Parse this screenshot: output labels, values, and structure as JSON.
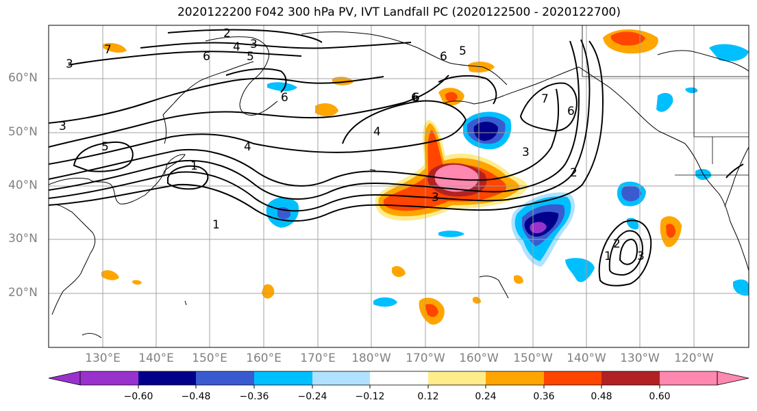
{
  "title": "2020122200 F042 300 hPa PV, IVT Landfall PC (2020122500 - 2020122700)",
  "lat_labels": [
    "60°N",
    "50°N",
    "40°N",
    "30°N",
    "20°N"
  ],
  "lon_labels": [
    "130°E",
    "140°E",
    "150°E",
    "160°E",
    "170°E",
    "180°W",
    "170°W",
    "160°W",
    "150°W",
    "140°W",
    "130°W",
    "120°W"
  ],
  "colorbar": {
    "ticks": [
      "−0.60",
      "−0.48",
      "−0.36",
      "−0.24",
      "−0.12",
      "0.12",
      "0.24",
      "0.36",
      "0.48",
      "0.60"
    ],
    "colors": [
      "#9932CC",
      "#00008B",
      "#3A5BD0",
      "#00BFFF",
      "#B0E2FF",
      "#FFFFFF",
      "#FFEC8B",
      "#FFA500",
      "#FF4500",
      "#B22222",
      "#FF88B0"
    ]
  },
  "contour_labels": [
    "2",
    "3",
    "4",
    "5",
    "6",
    "3",
    "6",
    "6",
    "5",
    "7",
    "6",
    "3",
    "5",
    "1",
    "4",
    "4",
    "6",
    "3",
    "6",
    "2",
    "7",
    "1",
    "1",
    "2",
    "3",
    "3"
  ]
}
